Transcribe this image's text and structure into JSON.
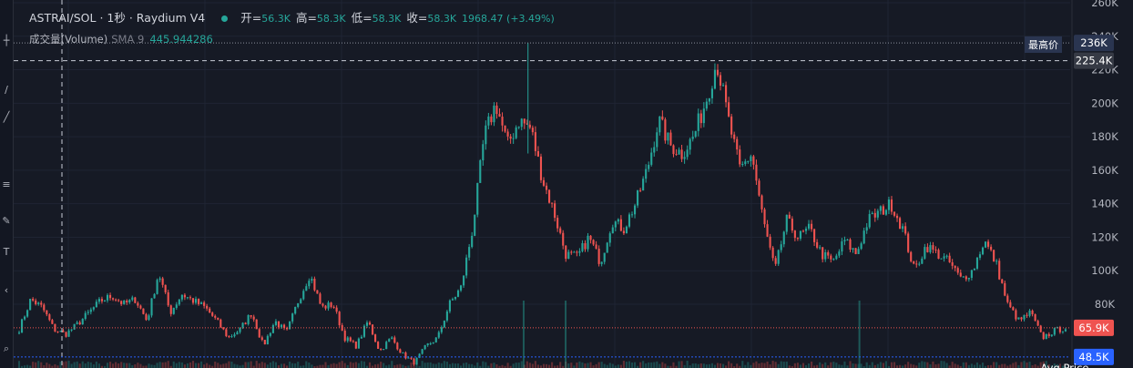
{
  "legend": {
    "symbol": "ASTRAI/SOL · 1秒 · Raydium V4",
    "open_label": "开=",
    "open": "56.3K",
    "high_label": "高=",
    "high": "58.3K",
    "low_label": "低=",
    "low": "58.3K",
    "close_label": "收=",
    "close": "58.3K",
    "change": "1968.47 (+3.49%)"
  },
  "volume_legend": {
    "label": "成交量(Volume)",
    "sma": "SMA 9",
    "sma_value": "445.944286"
  },
  "markers": {
    "high_tag": "最高价",
    "high_label": "236K",
    "crosshair_label": "225.4K",
    "last_label": "65.9K",
    "avg_label": "48.5K",
    "avg_title": "Avg Price"
  },
  "colors": {
    "up": "#26a69a",
    "down": "#ef5350",
    "background": "#161a25",
    "avg_line": "#2962ff",
    "last_line": "#ef5350"
  },
  "chart_data": {
    "type": "candlestick",
    "y_ticks": [
      80000,
      100000,
      120000,
      140000,
      160000,
      180000,
      200000,
      220000,
      240000,
      260000
    ],
    "y_tick_labels": [
      "80K",
      "100K",
      "120K",
      "140K",
      "160K",
      "180K",
      "200K",
      "220K",
      "240K",
      "260K"
    ],
    "ylim": [
      42000,
      260000
    ],
    "high": 236000,
    "crosshair_price": 225400,
    "last_price": 65900,
    "avg_price": 48500,
    "grid": true,
    "close_path": [
      65000,
      83000,
      78000,
      65000,
      62000,
      68000,
      75000,
      82000,
      85000,
      80000,
      83000,
      70000,
      99000,
      75000,
      86000,
      82000,
      78000,
      70000,
      60000,
      65000,
      75000,
      55000,
      70000,
      63000,
      82000,
      98000,
      78000,
      80000,
      60000,
      55000,
      70000,
      52000,
      60000,
      50000,
      45000,
      55000,
      60000,
      80000,
      90000,
      125000,
      180000,
      200000,
      175000,
      190000,
      185000,
      155000,
      135000,
      110000,
      108000,
      120000,
      105000,
      130000,
      125000,
      140000,
      160000,
      190000,
      175000,
      170000,
      180000,
      200000,
      225000,
      190000,
      160000,
      170000,
      130000,
      100000,
      130000,
      120000,
      125000,
      110000,
      105000,
      118000,
      110000,
      130000,
      135000,
      140000,
      125000,
      100000,
      115000,
      110000,
      105000,
      95000,
      100000,
      118000,
      105000,
      80000,
      70000,
      75000,
      60000,
      64000,
      66000
    ],
    "volume_spikes": [
      0.48,
      0.52,
      0.8
    ]
  }
}
